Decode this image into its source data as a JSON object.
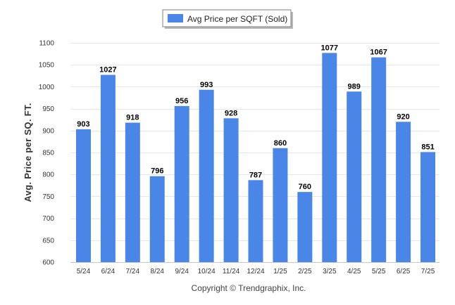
{
  "chart_data": {
    "type": "bar",
    "categories": [
      "5/24",
      "6/24",
      "7/24",
      "8/24",
      "9/24",
      "10/24",
      "11/24",
      "12/24",
      "1/25",
      "2/25",
      "3/25",
      "4/25",
      "5/25",
      "6/25",
      "7/25"
    ],
    "series": [
      {
        "name": "Avg Price per SQFT (Sold)",
        "color": "#4a86e8",
        "values": [
          903,
          1027,
          918,
          796,
          956,
          993,
          928,
          787,
          860,
          760,
          1077,
          989,
          1067,
          920,
          851
        ]
      }
    ],
    "xlabel": "",
    "ylabel": "Avg. Price per SQ. FT.",
    "ylim": [
      600,
      1100
    ],
    "yticks": [
      600,
      650,
      700,
      750,
      800,
      850,
      900,
      950,
      1000,
      1050,
      1100
    ],
    "grid": true,
    "legend_position": "top-center",
    "data_labels": true
  },
  "footer": {
    "copyright": "Copyright © Trendgraphix, Inc."
  }
}
